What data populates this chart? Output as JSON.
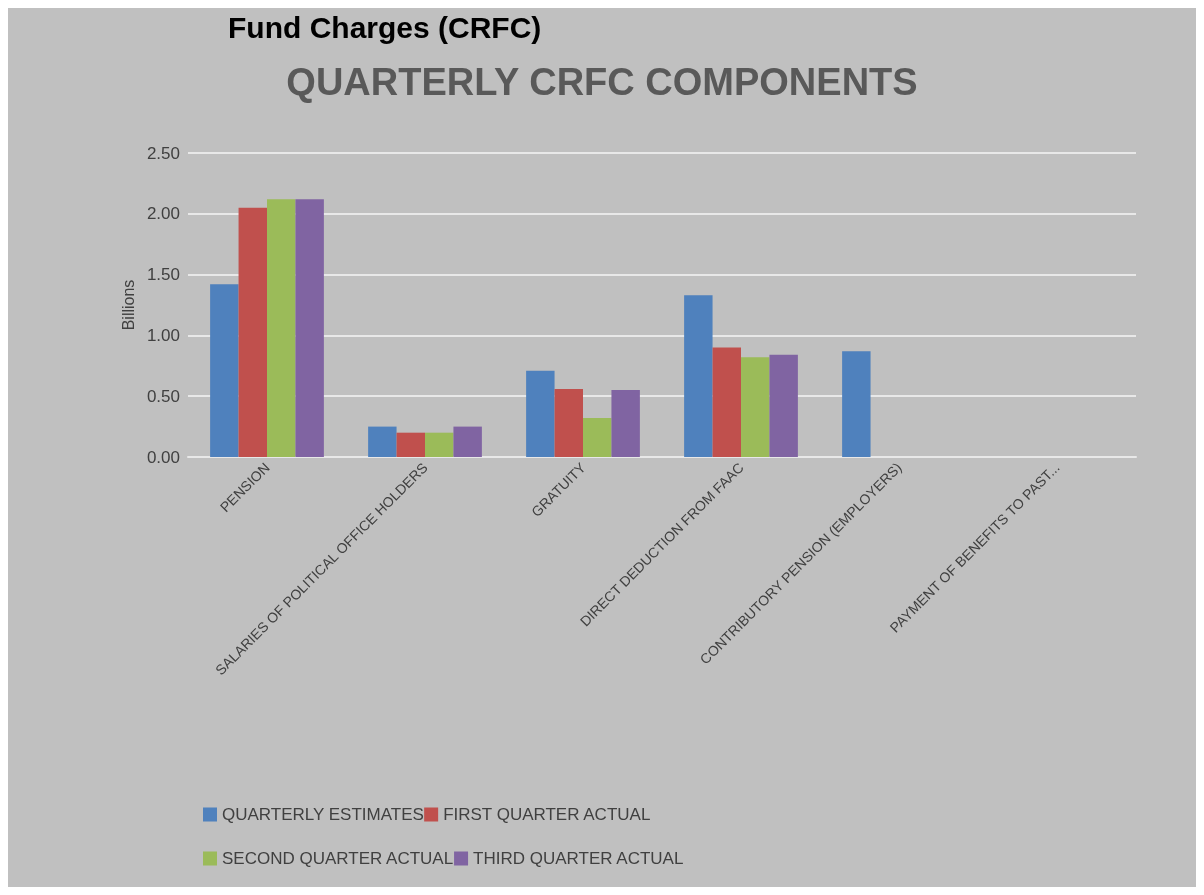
{
  "chart_data": {
    "type": "bar",
    "title": "QUARTERLY CRFC COMPONENTS",
    "ylabel": "Billions",
    "annotations": [
      "Fund Charges (CRFC)"
    ],
    "categories": [
      "PENSION",
      "SALARIES OF POLITICAL OFFICE HOLDERS",
      "GRATUITY",
      "DIRECT DEDUCTION FROM FAAC",
      "CONTRIBUTORY PENSION (EMPLOYERS)",
      "PAYMENT OF BENEFITS TO PAST..."
    ],
    "series": [
      {
        "name": "QUARTERLY ESTIMATES",
        "color": "#4f81bd",
        "values": [
          1.42,
          0.25,
          0.71,
          1.33,
          0.87,
          0
        ]
      },
      {
        "name": "FIRST QUARTER ACTUAL",
        "color": "#c0504d",
        "values": [
          2.05,
          0.2,
          0.56,
          0.9,
          0,
          0
        ]
      },
      {
        "name": "SECOND QUARTER ACTUAL",
        "color": "#9bbb59",
        "values": [
          2.12,
          0.2,
          0.32,
          0.82,
          0,
          0
        ]
      },
      {
        "name": "THIRD QUARTER ACTUAL",
        "color": "#8064a2",
        "values": [
          2.12,
          0.25,
          0.55,
          0.84,
          0,
          0
        ]
      }
    ],
    "ylim": [
      0,
      2.5
    ],
    "yticks": [
      {
        "value": 0,
        "label": "0.00"
      },
      {
        "value": 0.5,
        "label": "0.50"
      },
      {
        "value": 1,
        "label": "1.00"
      },
      {
        "value": 1.5,
        "label": "1.50"
      },
      {
        "value": 2,
        "label": "2.00"
      },
      {
        "value": 2.5,
        "label": "2.50"
      }
    ],
    "grid": "y",
    "legend": "bottom"
  }
}
